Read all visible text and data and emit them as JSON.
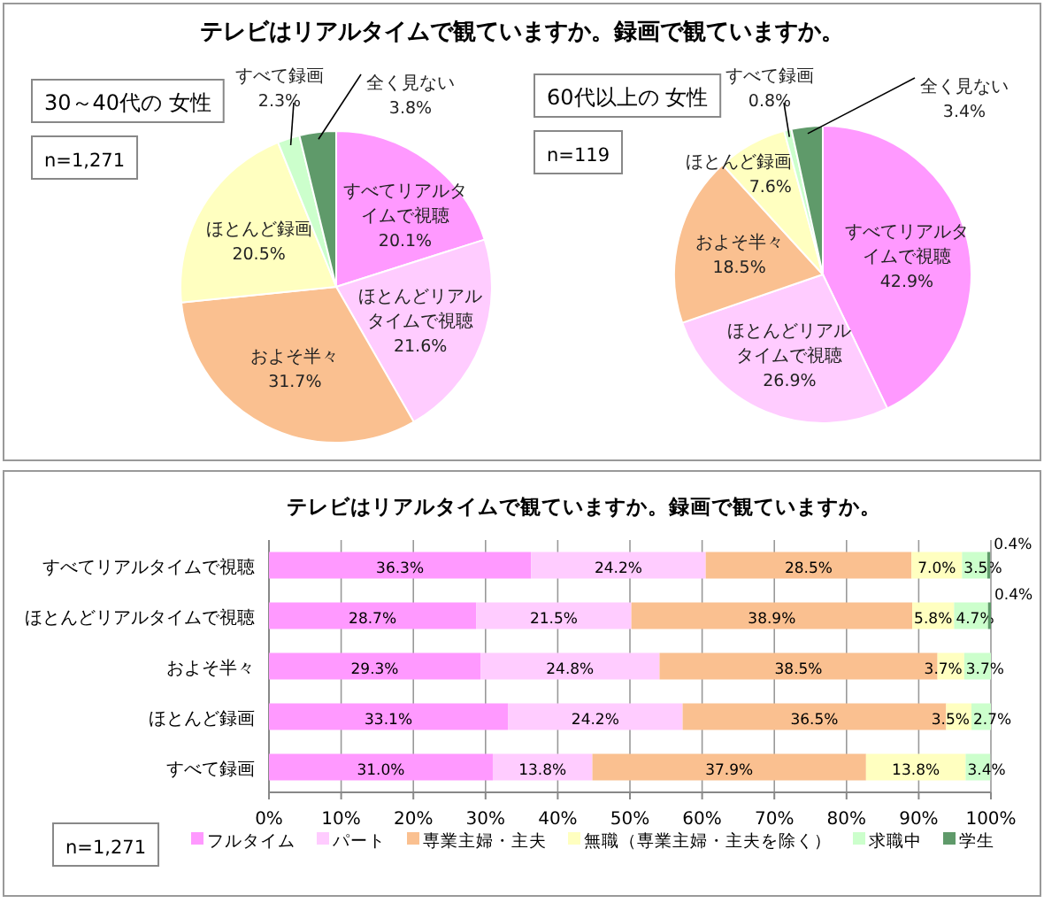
{
  "chart_data": [
    {
      "type": "pie",
      "title": "テレビはリアルタイムで観ていますか。録画で観ていますか。",
      "categories": [
        "すべてリアルタイムで視聴",
        "ほとんどリアルタイムで視聴",
        "およそ半々",
        "ほとんど録画",
        "すべて録画",
        "全く見ない"
      ],
      "values": [
        20.1,
        21.6,
        31.7,
        20.5,
        2.3,
        3.8
      ],
      "value_labels": [
        "20.1%",
        "21.6%",
        "31.7%",
        "20.5%",
        "2.3%",
        "3.8%"
      ],
      "colors": [
        "#ff99ff",
        "#ffccff",
        "#fac090",
        "#ffffc0",
        "#ccffcc",
        "#5f9a6a"
      ],
      "annotations": [
        "30～40代の 女性",
        "n=1,271"
      ]
    },
    {
      "type": "pie",
      "categories": [
        "すべてリアルタイムで視聴",
        "ほとんどリアルタイムで視聴",
        "およそ半々",
        "ほとんど録画",
        "すべて録画",
        "全く見ない"
      ],
      "values": [
        42.9,
        26.9,
        18.5,
        7.6,
        0.8,
        3.4
      ],
      "value_labels": [
        "42.9%",
        "26.9%",
        "18.5%",
        "7.6%",
        "0.8%",
        "3.4%"
      ],
      "colors": [
        "#ff99ff",
        "#ffccff",
        "#fac090",
        "#ffffc0",
        "#ccffcc",
        "#5f9a6a"
      ],
      "annotations": [
        "60代以上の 女性",
        "n=119"
      ]
    },
    {
      "type": "bar",
      "orientation": "horizontal",
      "stacked": true,
      "title": "テレビはリアルタイムで観ていますか。録画で観ていますか。",
      "categories": [
        "すべてリアルタイムで視聴",
        "ほとんどリアルタイムで視聴",
        "およそ半々",
        "ほとんど録画",
        "すべて録画"
      ],
      "xlim": [
        0,
        100
      ],
      "xticks": [
        {
          "value": 0,
          "label": "0%"
        },
        {
          "value": 10,
          "label": "10%"
        },
        {
          "value": 20,
          "label": "20%"
        },
        {
          "value": 30,
          "label": "30%"
        },
        {
          "value": 40,
          "label": "40%"
        },
        {
          "value": 50,
          "label": "50%"
        },
        {
          "value": 60,
          "label": "60%"
        },
        {
          "value": 70,
          "label": "70%"
        },
        {
          "value": 80,
          "label": "80%"
        },
        {
          "value": 90,
          "label": "90%"
        },
        {
          "value": 100,
          "label": "100%"
        }
      ],
      "grid": "x",
      "legend": "bottom",
      "annotations": [
        "n=1,271"
      ],
      "series": [
        {
          "name": "フルタイム",
          "color": "#ff99ff",
          "values": [
            36.3,
            28.7,
            29.3,
            33.1,
            31.0
          ],
          "value_labels": [
            "36.3%",
            "28.7%",
            "29.3%",
            "33.1%",
            "31.0%"
          ]
        },
        {
          "name": "パート",
          "color": "#ffccff",
          "values": [
            24.2,
            21.5,
            24.8,
            24.2,
            13.8
          ],
          "value_labels": [
            "24.2%",
            "21.5%",
            "24.8%",
            "24.2%",
            "13.8%"
          ]
        },
        {
          "name": "専業主婦・主夫",
          "color": "#fac090",
          "values": [
            28.5,
            38.9,
            38.5,
            36.5,
            37.9
          ],
          "value_labels": [
            "28.5%",
            "38.9%",
            "38.5%",
            "36.5%",
            "37.9%"
          ]
        },
        {
          "name": "無職（専業主婦・主夫を除く）",
          "color": "#ffffc0",
          "values": [
            7.0,
            5.8,
            3.7,
            3.5,
            13.8
          ],
          "value_labels": [
            "7.0%",
            "5.8%",
            "3.7%",
            "3.5%",
            "13.8%"
          ]
        },
        {
          "name": "求職中",
          "color": "#ccffcc",
          "values": [
            3.5,
            4.7,
            3.7,
            2.7,
            3.4
          ],
          "value_labels": [
            "3.5%",
            "4.7%",
            "3.7%",
            "2.7%",
            "3.4%"
          ]
        },
        {
          "name": "学生",
          "color": "#5f9a6a",
          "values": [
            0.4,
            0.4,
            null,
            null,
            null
          ],
          "value_labels": [
            "0.4%",
            "0.4%",
            null,
            null,
            null
          ]
        }
      ]
    }
  ]
}
